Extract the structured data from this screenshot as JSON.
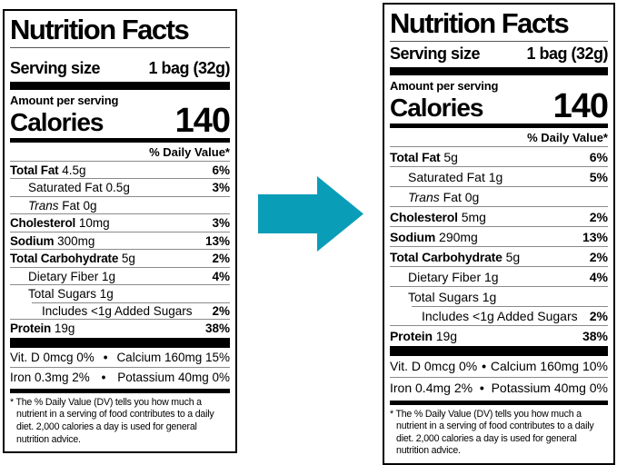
{
  "arrow": {
    "color": "#0a9db8"
  },
  "labels": {
    "before": {
      "title": "Nutrition Facts",
      "serving_size_label": "Serving size",
      "serving_size_value": "1 bag (32g)",
      "amount_per_serving": "Amount per serving",
      "calories_label": "Calories",
      "calories_value": "140",
      "daily_value_header": "% Daily Value*",
      "rows": [
        {
          "bold": "Total Fat",
          "text": "4.5g",
          "dv": "6%",
          "indent": 0
        },
        {
          "text": "Saturated Fat 0.5g",
          "dv": "3%",
          "indent": 1
        },
        {
          "italic": "Trans",
          "text": "Fat 0g",
          "dv": "",
          "indent": 1
        },
        {
          "bold": "Cholesterol",
          "text": "10mg",
          "dv": "3%",
          "indent": 0
        },
        {
          "bold": "Sodium",
          "text": "300mg",
          "dv": "13%",
          "indent": 0
        },
        {
          "bold": "Total Carbohydrate",
          "text": "5g",
          "dv": "2%",
          "indent": 0
        },
        {
          "text": "Dietary Fiber 1g",
          "dv": "4%",
          "indent": 1
        },
        {
          "text": "Total Sugars 1g",
          "dv": "",
          "indent": 1
        },
        {
          "text": "Includes <1g Added Sugars",
          "dv": "2%",
          "indent": 2,
          "rule_indent": true
        },
        {
          "bold": "Protein",
          "text": "19g",
          "dv": "38%",
          "indent": 0
        }
      ],
      "micronutrients": [
        {
          "left": "Vit. D 0mcg 0%",
          "bullet": "•",
          "right": "Calcium 160mg 15%"
        },
        {
          "left": "Iron 0.3mg 2%",
          "bullet": "•",
          "right": "Potassium 40mg 0%"
        }
      ],
      "footnote": "* The % Daily Value (DV) tells you how much a nutrient in a serving of food contributes to a daily diet. 2,000 calories a day is used for general nutrition advice."
    },
    "after": {
      "title": "Nutrition Facts",
      "serving_size_label": "Serving size",
      "serving_size_value": "1 bag (32g)",
      "amount_per_serving": "Amount per serving",
      "calories_label": "Calories",
      "calories_value": "140",
      "daily_value_header": "% Daily Value*",
      "rows": [
        {
          "bold": "Total Fat",
          "text": "5g",
          "dv": "6%",
          "indent": 0
        },
        {
          "text": "Saturated Fat 1g",
          "dv": "5%",
          "indent": 1
        },
        {
          "italic": "Trans",
          "text": "Fat 0g",
          "dv": "",
          "indent": 1
        },
        {
          "bold": "Cholesterol",
          "text": "5mg",
          "dv": "2%",
          "indent": 0
        },
        {
          "bold": "Sodium",
          "text": "290mg",
          "dv": "13%",
          "indent": 0
        },
        {
          "bold": "Total Carbohydrate",
          "text": "5g",
          "dv": "2%",
          "indent": 0
        },
        {
          "text": "Dietary Fiber 1g",
          "dv": "4%",
          "indent": 1
        },
        {
          "text": "Total Sugars 1g",
          "dv": "",
          "indent": 1
        },
        {
          "text": "Includes <1g Added Sugars",
          "dv": "2%",
          "indent": 2,
          "rule_indent": true
        },
        {
          "bold": "Protein",
          "text": "19g",
          "dv": "38%",
          "indent": 0
        }
      ],
      "micronutrients": [
        {
          "left": "Vit. D 0mcg 0%",
          "bullet": "•",
          "right": "Calcium 160mg 10%"
        },
        {
          "left": "Iron 0.4mg 2%",
          "bullet": "•",
          "right": "Potassium 40mg 0%"
        }
      ],
      "footnote": "* The % Daily Value (DV) tells you how much a nutrient in a serving of food contributes to a daily diet. 2,000 calories a day is used for general nutrition advice."
    }
  }
}
